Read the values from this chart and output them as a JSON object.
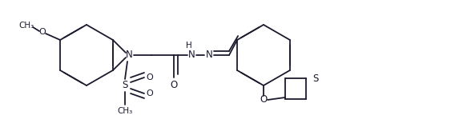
{
  "background_color": "#ffffff",
  "line_color": "#1a1a2e",
  "lw": 1.3,
  "dbo": 0.012,
  "figsize": [
    5.68,
    1.64
  ],
  "dpi": 100,
  "xlim": [
    0,
    568
  ],
  "ylim": [
    0,
    164
  ]
}
